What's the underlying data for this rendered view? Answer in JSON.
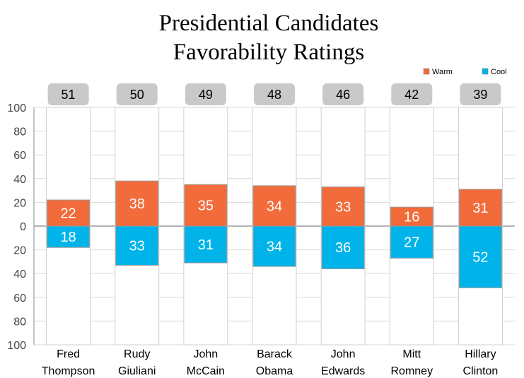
{
  "colors": {
    "warm": "#F26B3A",
    "cool": "#00B4EA",
    "total_box": "#C9C9C9",
    "column_bg": "#FFFFFF",
    "grid": "#D9D9D9"
  },
  "chart_data": {
    "type": "bar",
    "title": [
      "Presidential Candidates",
      "Favorability Ratings"
    ],
    "categories": [
      [
        "Fred",
        "Thompson"
      ],
      [
        "Rudy",
        "Giuliani"
      ],
      [
        "John",
        "McCain"
      ],
      [
        "Barack",
        "Obama"
      ],
      [
        "John",
        "Edwards"
      ],
      [
        "Mitt",
        "Romney"
      ],
      [
        "Hillary",
        "Clinton"
      ]
    ],
    "series": [
      {
        "name": "Warm",
        "values": [
          22,
          38,
          35,
          34,
          33,
          16,
          31
        ]
      },
      {
        "name": "Cool",
        "values": [
          18,
          33,
          31,
          34,
          36,
          27,
          52
        ]
      }
    ],
    "totals": [
      51,
      50,
      49,
      48,
      46,
      42,
      39
    ],
    "y_ticks": [
      "100",
      "80",
      "60",
      "40",
      "20",
      "0",
      "20",
      "40",
      "60",
      "80",
      "100"
    ],
    "ylim": [
      -100,
      100
    ],
    "grid": true,
    "legend_position": "top-right"
  }
}
